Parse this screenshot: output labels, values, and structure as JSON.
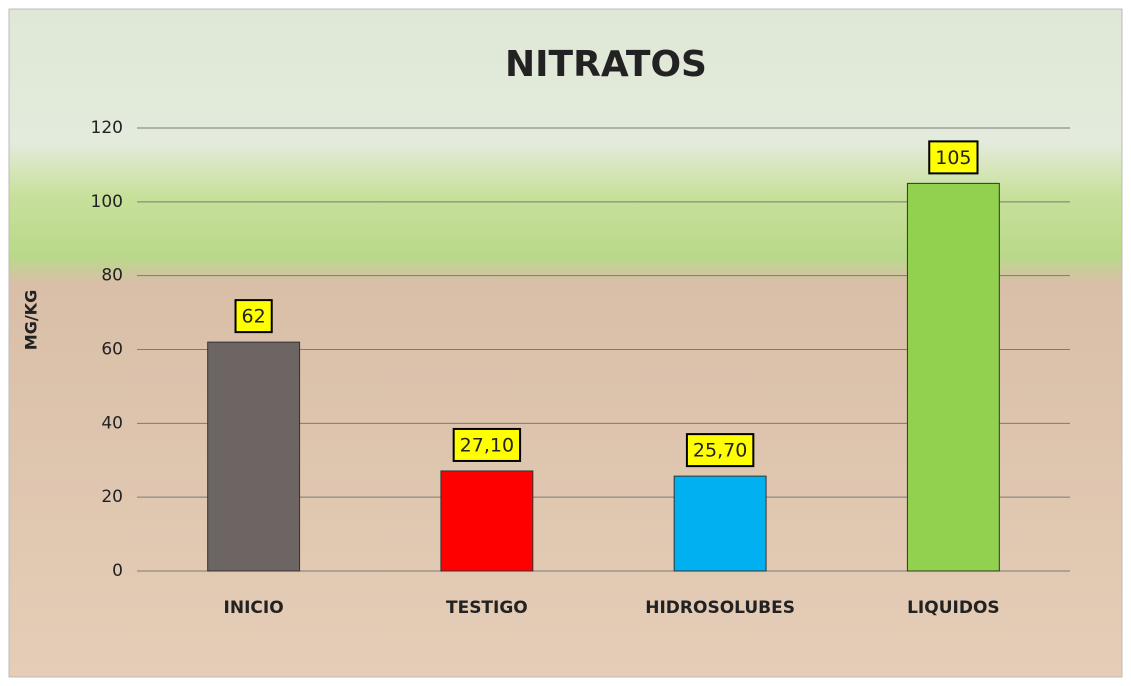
{
  "chart_data": {
    "type": "bar",
    "title": "NITRATOS",
    "y_label": "MG/KG",
    "categories": [
      "INICIO",
      "TESTIGO",
      "HIDROSOLUBES",
      "LIQUIDOS"
    ],
    "values": [
      62,
      27.1,
      25.7,
      105
    ],
    "value_labels": [
      "62",
      "27,10",
      "25,70",
      "105"
    ],
    "colors": [
      "#6d6464",
      "#ff0000",
      "#00b0f0",
      "#92d050"
    ],
    "ylim": [
      0,
      120
    ],
    "yticks": [
      0,
      20,
      40,
      60,
      80,
      100,
      120
    ],
    "grid": true
  }
}
